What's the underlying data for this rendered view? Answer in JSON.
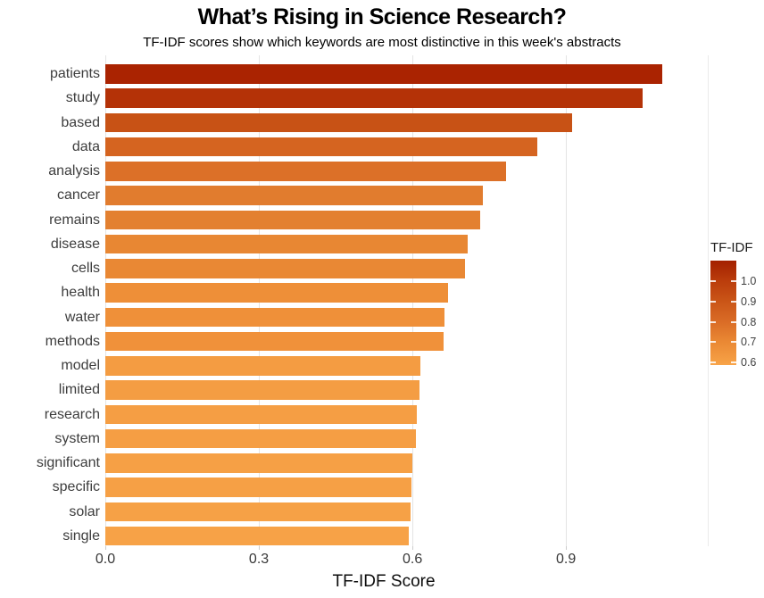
{
  "header": {
    "title": "What’s Rising in Science Research?",
    "subtitle": "TF-IDF scores show which keywords are most distinctive in this week's abstracts"
  },
  "chart_data": {
    "type": "bar",
    "orientation": "horizontal",
    "title": "What’s Rising in Science Research?",
    "subtitle": "TF-IDF scores show which keywords are most distinctive in this week's abstracts",
    "xlabel": "TF-IDF Score",
    "ylabel": "",
    "categories": [
      "patients",
      "study",
      "based",
      "data",
      "analysis",
      "cancer",
      "remains",
      "disease",
      "cells",
      "health",
      "water",
      "methods",
      "model",
      "limited",
      "research",
      "system",
      "significant",
      "specific",
      "solar",
      "single"
    ],
    "values": [
      1.088,
      1.05,
      0.912,
      0.844,
      0.783,
      0.737,
      0.732,
      0.708,
      0.702,
      0.67,
      0.663,
      0.66,
      0.616,
      0.614,
      0.609,
      0.606,
      0.599,
      0.598,
      0.596,
      0.593
    ],
    "bar_colors": [
      "#aa2301",
      "#b43207",
      "#c85215",
      "#d56420",
      "#dc7028",
      "#e17c2e",
      "#e38030",
      "#e88733",
      "#e98834",
      "#ee8f38",
      "#ef9039",
      "#f0913a",
      "#f49c42",
      "#f49d43",
      "#f59e44",
      "#f59e44",
      "#f6a045",
      "#f6a045",
      "#f6a146",
      "#f7a247"
    ],
    "xlim": [
      0,
      1.177
    ],
    "x_ticks": [
      0.0,
      0.3,
      0.6,
      0.9
    ],
    "x_tick_labels": [
      "0.0",
      "0.3",
      "0.6",
      "0.9"
    ],
    "grid": "vertical major gridlines only, light gray, white background",
    "legend": {
      "title": "TF-IDF",
      "position": "right",
      "type": "colorbar",
      "top_value": 1.101,
      "bottom_value": 0.587,
      "tick_values": [
        1.0,
        0.9,
        0.8,
        0.7,
        0.6
      ],
      "tick_labels": [
        "1.0",
        "0.9",
        "0.8",
        "0.7",
        "0.6"
      ],
      "gradient_stops": [
        {
          "value": 1.101,
          "color": "#a32000"
        },
        {
          "value": 1.0,
          "color": "#bb3d0c"
        },
        {
          "value": 0.9,
          "color": "#ca5517"
        },
        {
          "value": 0.8,
          "color": "#da6c26"
        },
        {
          "value": 0.7,
          "color": "#ea8934"
        },
        {
          "value": 0.6,
          "color": "#f6a045"
        },
        {
          "value": 0.587,
          "color": "#f8a54a"
        }
      ]
    }
  },
  "colors": {
    "background": "#ffffff",
    "gridline": "#e4e4e4",
    "axis_text": "#3d3d3d",
    "bar_max": "#aa2301",
    "bar_min": "#f7a247"
  }
}
